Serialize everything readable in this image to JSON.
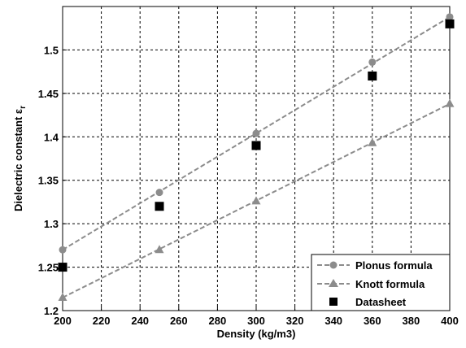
{
  "chart_data": {
    "type": "line",
    "xlabel": "Density (kg/m3)",
    "ylabel_main": "Dielectric constant ε",
    "ylabel_sub": "r",
    "xlim": [
      200,
      400
    ],
    "ylim": [
      1.2,
      1.55
    ],
    "x_ticks": [
      200,
      220,
      240,
      260,
      280,
      300,
      320,
      340,
      360,
      380,
      400
    ],
    "y_ticks": [
      1.2,
      1.25,
      1.3,
      1.35,
      1.4,
      1.45,
      1.5
    ],
    "y_tick_labels": [
      "1.2",
      "1.25",
      "1.3",
      "1.35",
      "1.4",
      "1.45",
      "1.5"
    ],
    "grid": true,
    "legend_position": "bottom-right",
    "series": [
      {
        "name": "Plonus formula",
        "kind": "dashed-line-markers",
        "marker": "circle",
        "color": "#8c8c8c",
        "line": {
          "x": [
            200,
            400
          ],
          "y": [
            1.27,
            1.538
          ]
        },
        "points": {
          "x": [
            200,
            250,
            300,
            360,
            400
          ],
          "y": [
            1.27,
            1.336,
            1.404,
            1.486,
            1.538
          ]
        }
      },
      {
        "name": "Knott formula",
        "kind": "dashed-line-markers",
        "marker": "triangle",
        "color": "#8c8c8c",
        "line": {
          "x": [
            200,
            400
          ],
          "y": [
            1.215,
            1.438
          ]
        },
        "points": {
          "x": [
            200,
            250,
            300,
            360,
            400
          ],
          "y": [
            1.215,
            1.27,
            1.326,
            1.393,
            1.438
          ]
        }
      },
      {
        "name": "Datasheet",
        "kind": "markers",
        "marker": "square",
        "color": "#000000",
        "points": {
          "x": [
            200,
            250,
            300,
            360,
            400
          ],
          "y": [
            1.25,
            1.32,
            1.39,
            1.47,
            1.53
          ]
        }
      }
    ]
  }
}
